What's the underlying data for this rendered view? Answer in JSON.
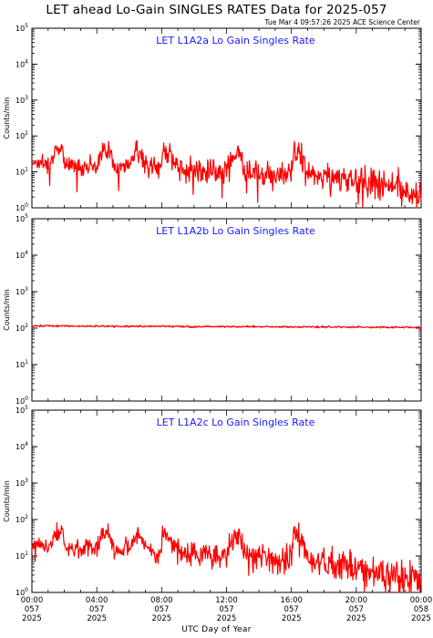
{
  "header": {
    "title": "LET ahead Lo-Gain SINGLES RATES Data for 2025-057",
    "timestamp": "Tue Mar  4 09:57:26 2025 ACE Science Center"
  },
  "axes": {
    "ylabel": "Counts/min",
    "xlabel": "UTC Day of Year",
    "yticks": [
      "0",
      "1",
      "2",
      "3",
      "4",
      "5"
    ],
    "xticks": [
      {
        "time": "00:00",
        "doy": "057",
        "year": "2025"
      },
      {
        "time": "04:00",
        "doy": "057",
        "year": "2025"
      },
      {
        "time": "08:00",
        "doy": "057",
        "year": "2025"
      },
      {
        "time": "12:00",
        "doy": "057",
        "year": "2025"
      },
      {
        "time": "16:00",
        "doy": "057",
        "year": "2025"
      },
      {
        "time": "20:00",
        "doy": "057",
        "year": "2025"
      },
      {
        "time": "00:00",
        "doy": "058",
        "year": "2025"
      }
    ]
  },
  "colors": {
    "data": "#ff0000",
    "panel_title": "#1a1aff",
    "axis": "#000000"
  },
  "chart_data": [
    {
      "type": "line",
      "title": "LET L1A2a Lo Gain Singles Rate",
      "ylabel": "Counts/min",
      "xlabel": "UTC Day of Year",
      "yscale": "log",
      "ylim": [
        1,
        100000
      ],
      "xlim_hours": [
        0,
        24
      ],
      "series": [
        {
          "x_hours": [
            0,
            1,
            1.9,
            2,
            3,
            4,
            4.7,
            5,
            6,
            6.5,
            7,
            8,
            8.1,
            9,
            10,
            11,
            12,
            12.8,
            13,
            14,
            15,
            16,
            16.2,
            17,
            18,
            19,
            20,
            21,
            22,
            23,
            24
          ],
          "values": [
            20,
            17,
            52,
            16,
            15,
            15,
            50,
            14,
            14,
            45,
            14,
            13,
            45,
            12,
            12,
            11,
            11,
            40,
            10,
            9,
            9,
            8,
            40,
            8,
            7,
            7,
            6,
            5,
            4,
            3,
            2
          ]
        }
      ]
    },
    {
      "type": "line",
      "title": "LET L1A2b Lo Gain Singles Rate",
      "ylabel": "Counts/min",
      "xlabel": "UTC Day of Year",
      "yscale": "log",
      "ylim": [
        1,
        100000
      ],
      "xlim_hours": [
        0,
        24
      ],
      "series": [
        {
          "x_hours": [
            0,
            2,
            4,
            6,
            8,
            10,
            12,
            14,
            16,
            18,
            20,
            22,
            24
          ],
          "values": [
            115,
            115,
            112,
            112,
            112,
            110,
            110,
            110,
            108,
            108,
            106,
            106,
            105
          ]
        }
      ]
    },
    {
      "type": "line",
      "title": "LET L1A2c Lo Gain Singles Rate",
      "ylabel": "Counts/min",
      "xlabel": "UTC Day of Year",
      "yscale": "log",
      "ylim": [
        1,
        100000
      ],
      "xlim_hours": [
        0,
        24
      ],
      "series": [
        {
          "x_hours": [
            0,
            1,
            1.9,
            2,
            3,
            4,
            4.7,
            5,
            6,
            6.5,
            7,
            8,
            8.1,
            9,
            10,
            11,
            12,
            12.8,
            13,
            14,
            15,
            16,
            16.2,
            17,
            18,
            19,
            20,
            21,
            22,
            23,
            24
          ],
          "values": [
            22,
            18,
            55,
            17,
            16,
            16,
            55,
            15,
            15,
            45,
            14,
            13,
            45,
            12,
            12,
            11,
            10,
            40,
            10,
            9,
            8,
            8,
            40,
            7,
            6,
            6,
            5,
            4,
            3,
            2.5,
            2
          ]
        }
      ]
    }
  ]
}
